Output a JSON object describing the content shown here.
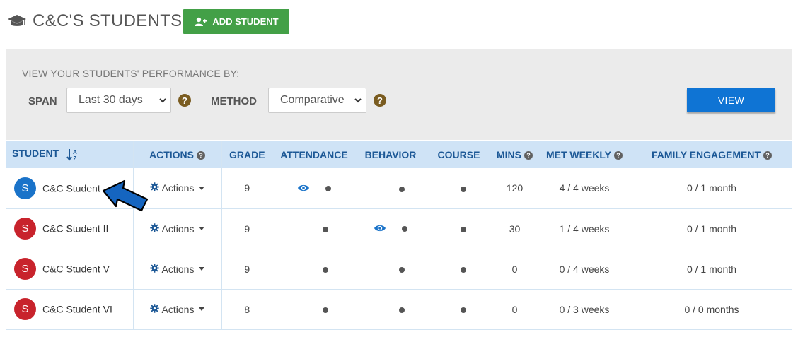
{
  "header": {
    "title": "C&C'S STUDENTS",
    "add_button": "ADD STUDENT"
  },
  "filters": {
    "heading": "VIEW YOUR STUDENTS' PERFORMANCE BY:",
    "span_label": "SPAN",
    "span_value": "Last 30 days",
    "method_label": "METHOD",
    "method_value": "Comparative",
    "view_button": "VIEW",
    "help_glyph": "?"
  },
  "table": {
    "columns": {
      "student": "STUDENT",
      "actions": "ACTIONS",
      "grade": "GRADE",
      "attendance": "ATTENDANCE",
      "behavior": "BEHAVIOR",
      "course": "COURSE",
      "mins": "MINS",
      "met_weekly": "MET WEEKLY",
      "family_engagement": "FAMILY ENGAGEMENT"
    },
    "rows": [
      {
        "initial": "S",
        "avatar_color": "#1a73c9",
        "name": "C&C Student",
        "actions": "Actions",
        "grade": "9",
        "attendance_eye": true,
        "behavior_eye": false,
        "mins": "120",
        "met_weekly": "4 / 4 weeks",
        "family": "0 / 1 month"
      },
      {
        "initial": "S",
        "avatar_color": "#c8232c",
        "name": "C&C Student II",
        "actions": "Actions",
        "grade": "9",
        "attendance_eye": false,
        "behavior_eye": true,
        "mins": "30",
        "met_weekly": "1 / 4 weeks",
        "family": "0 / 1 month"
      },
      {
        "initial": "S",
        "avatar_color": "#c8232c",
        "name": "C&C Student V",
        "actions": "Actions",
        "grade": "9",
        "attendance_eye": false,
        "behavior_eye": false,
        "mins": "0",
        "met_weekly": "0 / 4 weeks",
        "family": "0 / 1 month"
      },
      {
        "initial": "S",
        "avatar_color": "#c8232c",
        "name": "C&C Student VI",
        "actions": "Actions",
        "grade": "8",
        "attendance_eye": false,
        "behavior_eye": false,
        "mins": "0",
        "met_weekly": "0 / 3 weeks",
        "family": "0 / 0 months"
      }
    ]
  },
  "colors": {
    "add_green": "#43a047",
    "view_blue": "#0f74d4",
    "header_blue": "#1c5896",
    "help_brown": "#7a5c20"
  },
  "icons": [
    "graduation-cap-icon",
    "add-user-icon",
    "help-icon",
    "sort-alpha-icon",
    "gear-icon",
    "eye-icon",
    "pointer-arrow-icon"
  ]
}
